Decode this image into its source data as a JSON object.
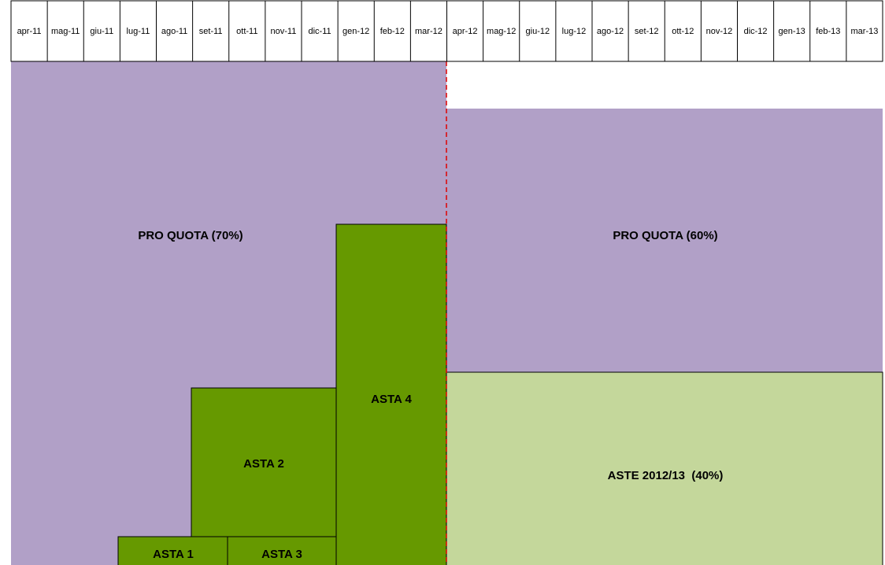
{
  "header": {
    "months": [
      "apr-11",
      "mag-11",
      "giu-11",
      "lug-11",
      "ago-11",
      "set-11",
      "ott-11",
      "nov-11",
      "dic-11",
      "gen-12",
      "feb-12",
      "mar-12",
      "apr-12",
      "mag-12",
      "giu-12",
      "lug-12",
      "ago-12",
      "set-12",
      "ott-12",
      "nov-12",
      "dic-12",
      "gen-13",
      "feb-13",
      "mar-13"
    ]
  },
  "blocks": {
    "pro_quota_2011": "PRO QUOTA (70%)",
    "pro_quota_2012": "PRO QUOTA (60%)",
    "aste_2012": "ASTE 2012/13  (40%)",
    "asta1": "ASTA 1",
    "asta2": "ASTA 2",
    "asta3": "ASTA 3",
    "asta4": "ASTA 4"
  }
}
